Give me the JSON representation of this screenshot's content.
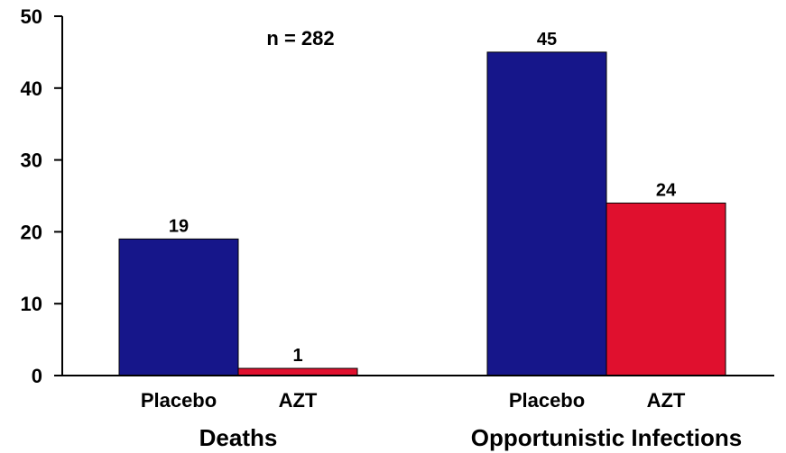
{
  "chart_data": {
    "type": "bar",
    "title": "",
    "annotation": "n = 282",
    "ylim": [
      0,
      50
    ],
    "yticks": [
      "0",
      "10",
      "20",
      "30",
      "40",
      "50"
    ],
    "grid": false,
    "groups": [
      {
        "label": "Deaths",
        "bars": [
          {
            "category": "Placebo",
            "value": 19,
            "color": "#16168a"
          },
          {
            "category": "AZT",
            "value": 1,
            "color": "#e0102e"
          }
        ]
      },
      {
        "label": "Opportunistic Infections",
        "bars": [
          {
            "category": "Placebo",
            "value": 45,
            "color": "#16168a"
          },
          {
            "category": "AZT",
            "value": 24,
            "color": "#e0102e"
          }
        ]
      }
    ]
  }
}
